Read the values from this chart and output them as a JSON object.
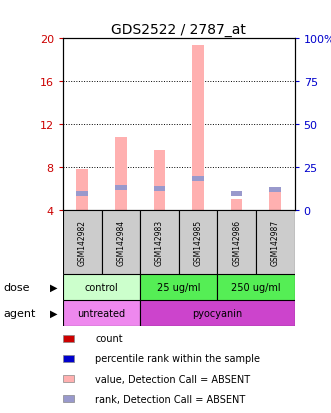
{
  "title": "GDS2522 / 2787_at",
  "samples": [
    "GSM142982",
    "GSM142984",
    "GSM142983",
    "GSM142985",
    "GSM142986",
    "GSM142987"
  ],
  "value_bars": [
    7.8,
    10.8,
    9.6,
    19.3,
    5.0,
    5.8
  ],
  "rank_bars": [
    5.5,
    6.1,
    6.0,
    6.9,
    5.5,
    5.9
  ],
  "value_base": 4.0,
  "ylim_left": [
    4,
    20
  ],
  "ylim_right": [
    0,
    100
  ],
  "yticks_left": [
    4,
    8,
    12,
    16,
    20
  ],
  "yticks_right": [
    0,
    25,
    50,
    75,
    100
  ],
  "ytick_labels_left": [
    "4",
    "8",
    "12",
    "16",
    "20"
  ],
  "ytick_labels_right": [
    "0",
    "25",
    "50",
    "75",
    "100%"
  ],
  "left_axis_color": "#cc0000",
  "right_axis_color": "#0000cc",
  "bar_pink": "#ffb0b0",
  "bar_blue": "#9999cc",
  "dose_groups": [
    {
      "label": "control",
      "c0": 0,
      "c1": 2,
      "color": "#ccffcc"
    },
    {
      "label": "25 ug/ml",
      "c0": 2,
      "c1": 4,
      "color": "#55ee55"
    },
    {
      "label": "250 ug/ml",
      "c0": 4,
      "c1": 6,
      "color": "#55ee55"
    }
  ],
  "agent_groups": [
    {
      "label": "untreated",
      "c0": 0,
      "c1": 2,
      "color": "#ee88ee"
    },
    {
      "label": "pyocyanin",
      "c0": 2,
      "c1": 6,
      "color": "#cc44cc"
    }
  ],
  "sample_box_color": "#cccccc",
  "legend_items": [
    {
      "color": "#cc0000",
      "label": "count"
    },
    {
      "color": "#0000cc",
      "label": "percentile rank within the sample"
    },
    {
      "color": "#ffb0b0",
      "label": "value, Detection Call = ABSENT"
    },
    {
      "color": "#9999cc",
      "label": "rank, Detection Call = ABSENT"
    }
  ],
  "dose_label": "dose",
  "agent_label": "agent",
  "bar_width": 0.3,
  "n": 6
}
